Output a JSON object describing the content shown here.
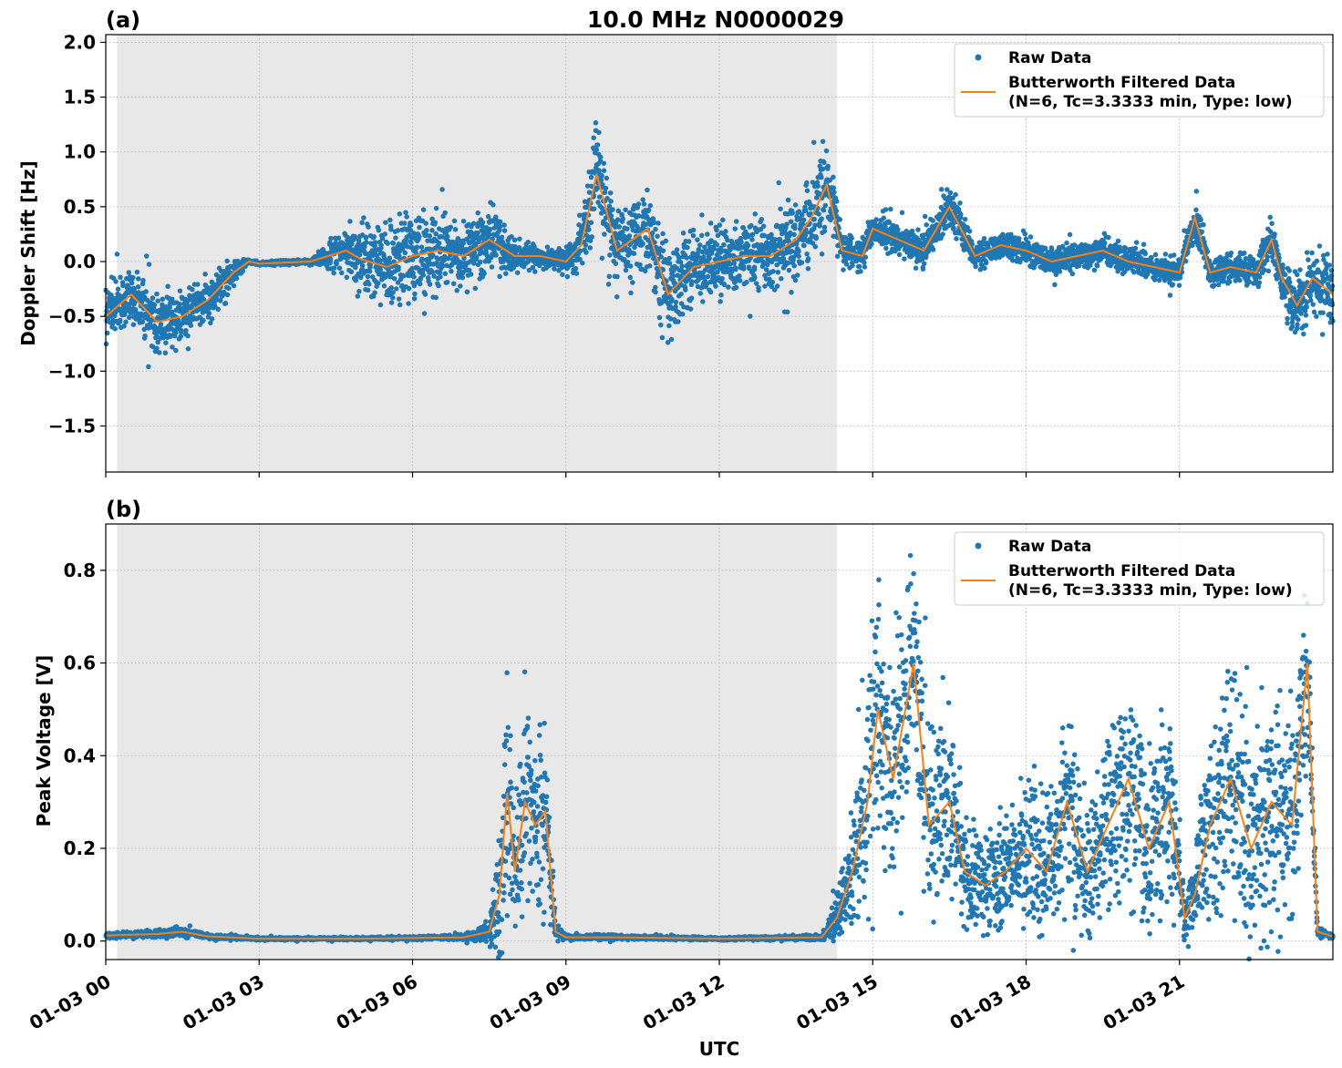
{
  "figure": {
    "title": "10.0 MHz N0000029",
    "xlabel": "UTC",
    "shade_color": "#e8e8e8",
    "raw_color": "#1f77b4",
    "filtered_color": "#ff7f0e"
  },
  "chart_data": [
    {
      "type": "scatter",
      "panel_label": "(a)",
      "ylabel": "Doppler Shift [Hz]",
      "xlim_hours": [
        0,
        24
      ],
      "ylim": [
        -1.92,
        2.07
      ],
      "yticks": [
        -1.5,
        -1.0,
        -0.5,
        0.0,
        0.5,
        1.0,
        1.5,
        2.0
      ],
      "ytick_labels": [
        "−1.5",
        "−1.0",
        "−0.5",
        "0.0",
        "0.5",
        "1.0",
        "1.5",
        "2.0"
      ],
      "grid": true,
      "shaded_interval_hours": [
        0.22,
        14.3
      ],
      "legend_placement": "upper-right",
      "legend": {
        "raw": "Raw Data",
        "filtered_line1": "Butterworth Filtered Data",
        "filtered_line2": "(N=6, Tc=3.3333 min, Type: low)"
      },
      "series": [
        {
          "name": "Butterworth Filtered Data",
          "x_hours": [
            0,
            0.5,
            1,
            1.5,
            2,
            2.2,
            2.5,
            2.8,
            3,
            4,
            4.7,
            5,
            5.5,
            6,
            6.5,
            7,
            7.5,
            8,
            8.5,
            9,
            9.3,
            9.6,
            10,
            10.3,
            10.6,
            11,
            11.5,
            12,
            12.5,
            13,
            13.5,
            13.8,
            14.1,
            14.4,
            14.8,
            15,
            15.5,
            16,
            16.5,
            17,
            17.5,
            18,
            18.5,
            19,
            19.5,
            20,
            20.5,
            21,
            21.3,
            21.6,
            22,
            22.5,
            22.8,
            23,
            23.3,
            23.6,
            24
          ],
          "y": [
            -0.5,
            -0.3,
            -0.55,
            -0.5,
            -0.35,
            -0.25,
            -0.1,
            0,
            -0.02,
            0,
            0.1,
            0.02,
            -0.05,
            0.05,
            0.1,
            0.05,
            0.2,
            0.05,
            0.05,
            0.0,
            0.15,
            0.8,
            0.1,
            0.2,
            0.3,
            -0.3,
            -0.05,
            0.0,
            0.05,
            0.05,
            0.2,
            0.4,
            0.7,
            0.1,
            0.05,
            0.3,
            0.2,
            0.1,
            0.5,
            0.05,
            0.15,
            0.1,
            0.0,
            0.05,
            0.1,
            0.0,
            -0.05,
            -0.1,
            0.4,
            -0.1,
            -0.05,
            -0.1,
            0.2,
            -0.15,
            -0.4,
            -0.15,
            -0.3
          ]
        }
      ],
      "raw_spread_hz": [
        0.25,
        0.25,
        0.25,
        0.22,
        0.2,
        0.2,
        0.1,
        0.02,
        0.02,
        0.02,
        0.2,
        0.3,
        0.35,
        0.4,
        0.35,
        0.3,
        0.3,
        0.15,
        0.1,
        0.1,
        0.25,
        0.4,
        0.35,
        0.35,
        0.35,
        0.4,
        0.3,
        0.3,
        0.3,
        0.3,
        0.35,
        0.35,
        0.35,
        0.15,
        0.15,
        0.15,
        0.15,
        0.15,
        0.2,
        0.12,
        0.12,
        0.12,
        0.12,
        0.12,
        0.12,
        0.12,
        0.12,
        0.12,
        0.15,
        0.12,
        0.12,
        0.15,
        0.2,
        0.25,
        0.3,
        0.3,
        0.3
      ]
    },
    {
      "type": "scatter",
      "panel_label": "(b)",
      "ylabel": "Peak Voltage [V]",
      "xlim_hours": [
        0,
        24
      ],
      "ylim": [
        -0.04,
        0.9
      ],
      "yticks": [
        0.0,
        0.2,
        0.4,
        0.6,
        0.8
      ],
      "ytick_labels": [
        "0.0",
        "0.2",
        "0.4",
        "0.6",
        "0.8"
      ],
      "xticks_hours": [
        0,
        3,
        6,
        9,
        12,
        15,
        18,
        21
      ],
      "xtick_labels": [
        "01-03 00",
        "01-03 03",
        "01-03 06",
        "01-03 09",
        "01-03 12",
        "01-03 15",
        "01-03 18",
        "01-03 21"
      ],
      "grid": true,
      "shaded_interval_hours": [
        0.22,
        14.3
      ],
      "legend_placement": "upper-right",
      "legend": {
        "raw": "Raw Data",
        "filtered_line1": "Butterworth Filtered Data",
        "filtered_line2": "(N=6, Tc=3.3333 min, Type: low)"
      },
      "series": [
        {
          "name": "Butterworth Filtered Data",
          "x_hours": [
            0,
            1,
            1.5,
            2,
            3,
            5,
            7,
            7.5,
            7.7,
            7.85,
            8.0,
            8.2,
            8.4,
            8.6,
            8.8,
            9.0,
            10,
            12,
            14,
            14.3,
            14.6,
            14.9,
            15.1,
            15.4,
            15.8,
            16.1,
            16.5,
            16.8,
            17.2,
            17.6,
            18.0,
            18.4,
            18.8,
            19.2,
            19.6,
            20.0,
            20.4,
            20.8,
            21.1,
            21.3,
            21.6,
            22.0,
            22.4,
            22.8,
            23.2,
            23.5,
            23.7,
            24
          ],
          "y": [
            0.012,
            0.015,
            0.02,
            0.01,
            0.005,
            0.005,
            0.008,
            0.02,
            0.1,
            0.32,
            0.15,
            0.3,
            0.25,
            0.28,
            0.02,
            0.008,
            0.008,
            0.005,
            0.008,
            0.05,
            0.15,
            0.3,
            0.5,
            0.35,
            0.6,
            0.25,
            0.3,
            0.15,
            0.12,
            0.15,
            0.2,
            0.15,
            0.3,
            0.15,
            0.25,
            0.35,
            0.2,
            0.3,
            0.05,
            0.1,
            0.25,
            0.35,
            0.2,
            0.3,
            0.25,
            0.6,
            0.02,
            0.01
          ]
        }
      ],
      "raw_spread_v": [
        0.005,
        0.008,
        0.01,
        0.005,
        0.003,
        0.003,
        0.005,
        0.02,
        0.15,
        0.25,
        0.15,
        0.2,
        0.2,
        0.2,
        0.02,
        0.005,
        0.005,
        0.003,
        0.005,
        0.05,
        0.12,
        0.2,
        0.25,
        0.25,
        0.22,
        0.2,
        0.2,
        0.12,
        0.1,
        0.12,
        0.15,
        0.15,
        0.2,
        0.15,
        0.2,
        0.2,
        0.2,
        0.2,
        0.05,
        0.1,
        0.2,
        0.25,
        0.2,
        0.25,
        0.2,
        0.2,
        0.01,
        0.005
      ]
    }
  ]
}
